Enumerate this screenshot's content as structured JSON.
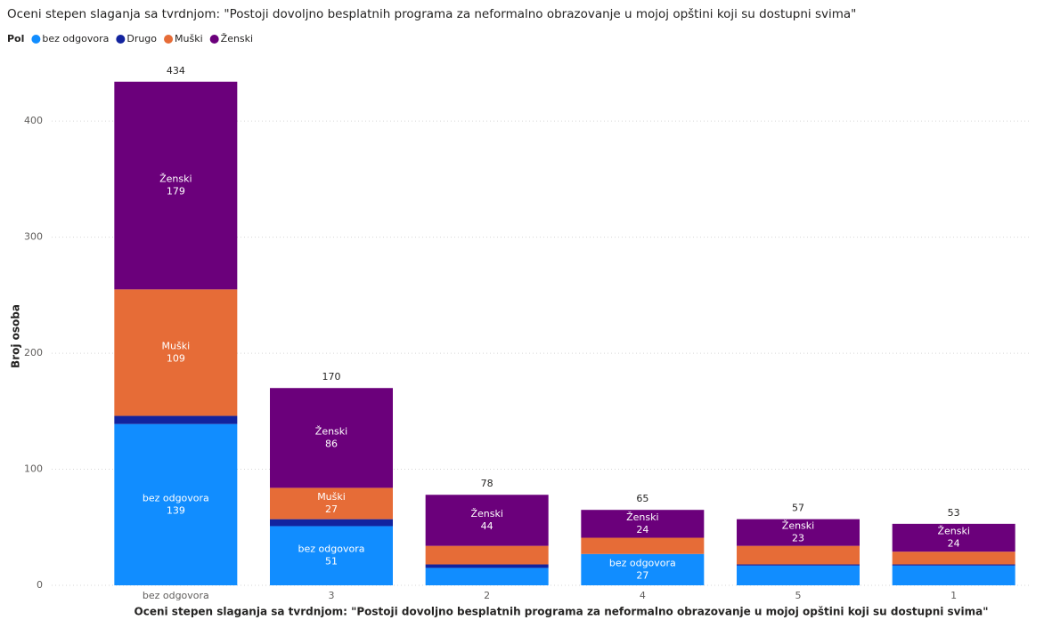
{
  "chart_data": {
    "type": "stacked_bar",
    "title": "Oceni stepen slaganja sa tvrdnjom: \"Postoji dovoljno besplatnih programa za neformalno obrazovanje u mojoj opštini koji su dostupni svima\"",
    "legend_title": "Pol",
    "legend_position": "top-left",
    "x_label": "Oceni stepen slaganja sa tvrdnjom: \"Postoji dovoljno besplatnih programa za neformalno obrazovanje u mojoj opštini koji su dostupni svima\"",
    "y_label": "Broj osoba",
    "categories": [
      "bez odgovora",
      "3",
      "2",
      "4",
      "5",
      "1"
    ],
    "series": [
      {
        "name": "bez odgovora",
        "color": "#118DFF",
        "values": [
          139,
          51,
          15,
          27,
          17,
          17
        ],
        "show_labels": [
          true,
          true,
          false,
          true,
          false,
          false
        ]
      },
      {
        "name": "Drugo",
        "color": "#12239E",
        "values": [
          7,
          6,
          3,
          0,
          1,
          1
        ],
        "show_labels": [
          false,
          false,
          false,
          false,
          false,
          false
        ]
      },
      {
        "name": "Muški",
        "color": "#E66C37",
        "values": [
          109,
          27,
          16,
          14,
          16,
          11
        ],
        "show_labels": [
          true,
          true,
          false,
          false,
          false,
          false
        ]
      },
      {
        "name": "Ženski",
        "color": "#6B007B",
        "values": [
          179,
          86,
          44,
          24,
          23,
          24
        ],
        "show_labels": [
          true,
          true,
          true,
          true,
          true,
          true
        ]
      }
    ],
    "totals": [
      434,
      170,
      78,
      65,
      57,
      53
    ],
    "ylim": [
      0,
      440
    ],
    "yticks": [
      0,
      100,
      200,
      300,
      400
    ],
    "grid": true
  }
}
